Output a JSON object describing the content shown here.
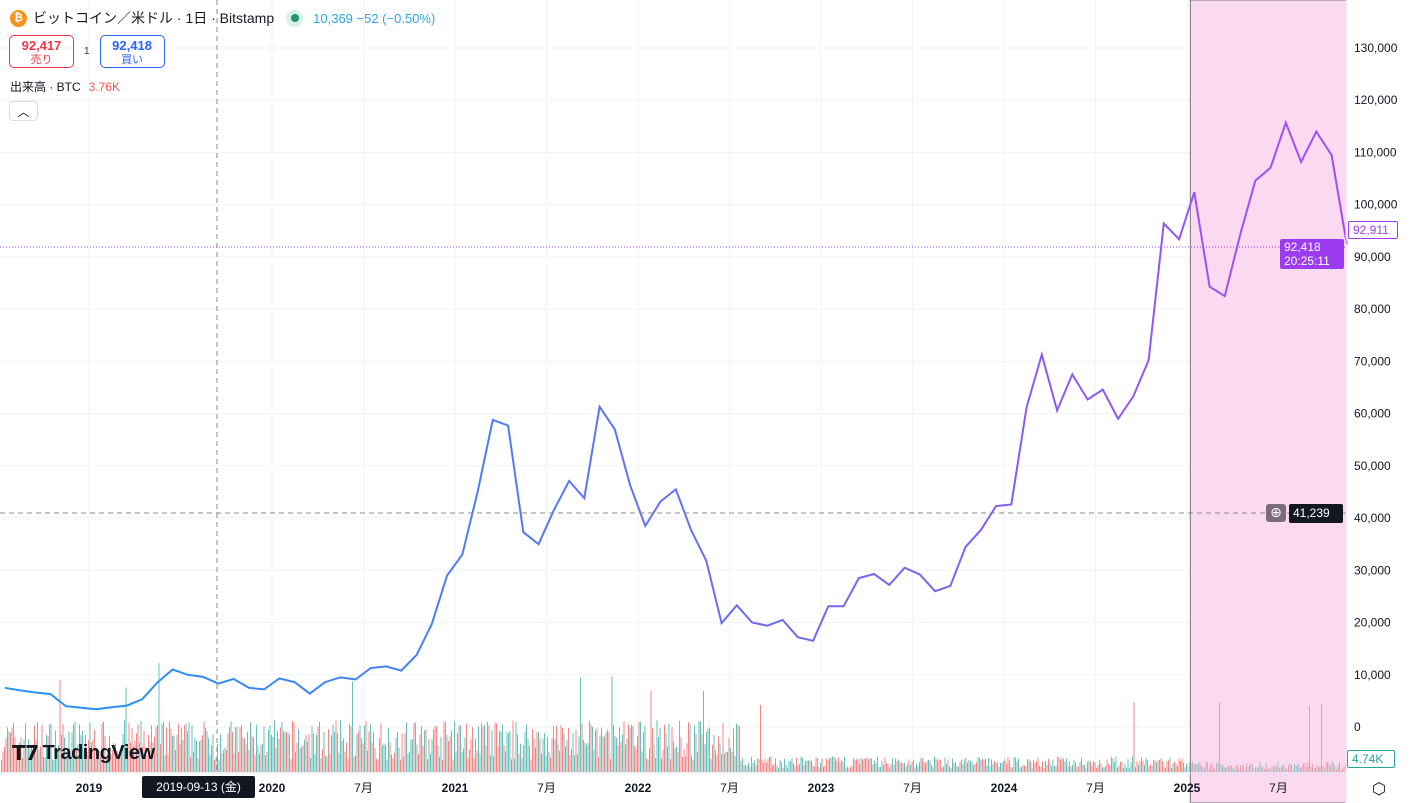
{
  "header": {
    "symbol": "ビットコイン／米ドル · 1日 · Bitstamp",
    "coin_icon": "bitcoin-icon",
    "status": "market-open-dot",
    "quote": "10,369  −52 (−0.50%)"
  },
  "bidask": {
    "sell_price": "92,417",
    "sell_label": "売り",
    "spread": "1",
    "buy_price": "92,418",
    "buy_label": "買い"
  },
  "volume": {
    "label": "出来高 · BTC",
    "value": "3.76K",
    "axis_tag": "4.74K"
  },
  "collapse_icon": "chevron-up-icon",
  "price_tags": {
    "prev": "92,911",
    "last": "92,418",
    "countdown": "20:25:11",
    "crosshair": "41,239",
    "crosshair_date": "2019-09-13 (金)"
  },
  "brand": "TradingView",
  "colors": {
    "line_start": "#2196f3",
    "line_end": "#a54cf0",
    "highlight": "#fbd9f1",
    "vol_up": "#26a69a",
    "vol_down": "#ef5350",
    "last_tag": "#9c3cf0"
  },
  "chart_data": {
    "type": "line",
    "title": "",
    "ylim": [
      0,
      130000
    ],
    "y_ticks": [
      "0",
      "10,000",
      "20,000",
      "30,000",
      "40,000",
      "50,000",
      "60,000",
      "70,000",
      "80,000",
      "90,000",
      "100,000",
      "110,000",
      "120,000",
      "130,000"
    ],
    "x_ticks": [
      "2019",
      "2020",
      "7月",
      "2021",
      "7月",
      "2022",
      "7月",
      "2023",
      "7月",
      "2024",
      "7月",
      "2025",
      "7月"
    ],
    "grid": true,
    "highlight_range": [
      "2025-01",
      "2025-11"
    ],
    "series": [
      {
        "x": [
          "2018-07",
          "2018-08",
          "2018-09",
          "2018-10",
          "2018-11",
          "2018-12",
          "2019-01",
          "2019-02",
          "2019-03",
          "2019-04",
          "2019-05",
          "2019-06",
          "2019-07",
          "2019-08",
          "2019-09",
          "2019-10",
          "2019-11",
          "2019-12",
          "2020-01",
          "2020-02",
          "2020-03",
          "2020-04",
          "2020-05",
          "2020-06",
          "2020-07",
          "2020-08",
          "2020-09",
          "2020-10",
          "2020-11",
          "2020-12",
          "2021-01",
          "2021-02",
          "2021-03",
          "2021-04",
          "2021-05",
          "2021-06",
          "2021-07",
          "2021-08",
          "2021-09",
          "2021-10",
          "2021-11",
          "2021-12",
          "2022-01",
          "2022-02",
          "2022-03",
          "2022-04",
          "2022-05",
          "2022-06",
          "2022-07",
          "2022-08",
          "2022-09",
          "2022-10",
          "2022-11",
          "2022-12",
          "2023-01",
          "2023-02",
          "2023-03",
          "2023-04",
          "2023-05",
          "2023-06",
          "2023-07",
          "2023-08",
          "2023-09",
          "2023-10",
          "2023-11",
          "2023-12",
          "2024-01",
          "2024-02",
          "2024-03",
          "2024-04",
          "2024-05",
          "2024-06",
          "2024-07",
          "2024-08",
          "2024-09",
          "2024-10",
          "2024-11",
          "2024-12",
          "2025-01",
          "2025-02",
          "2025-03",
          "2025-04",
          "2025-05",
          "2025-06",
          "2025-07",
          "2025-08",
          "2025-09",
          "2025-10",
          "2025-11"
        ],
        "y": [
          7500,
          7000,
          6600,
          6300,
          4000,
          3700,
          3400,
          3800,
          4100,
          5300,
          8500,
          11000,
          10000,
          9600,
          8300,
          9200,
          7500,
          7200,
          9300,
          8600,
          6400,
          8600,
          9500,
          9100,
          11300,
          11600,
          10800,
          13800,
          19700,
          29000,
          33000,
          45000,
          58800,
          57700,
          37300,
          35000,
          41500,
          47100,
          43800,
          61300,
          57000,
          46300,
          38500,
          43200,
          45500,
          37700,
          31800,
          19900,
          23300,
          20000,
          19400,
          20500,
          17200,
          16500,
          23100,
          23100,
          28500,
          29300,
          27200,
          30500,
          29200,
          26000,
          27000,
          34500,
          37700,
          42300,
          42600,
          61200,
          71300,
          60600,
          67500,
          62700,
          64600,
          59000,
          63300,
          70200,
          96400,
          93400,
          102400,
          84300,
          82500,
          94200,
          104600,
          107100,
          115700,
          108200,
          114000,
          109500,
          92418
        ]
      }
    ]
  }
}
